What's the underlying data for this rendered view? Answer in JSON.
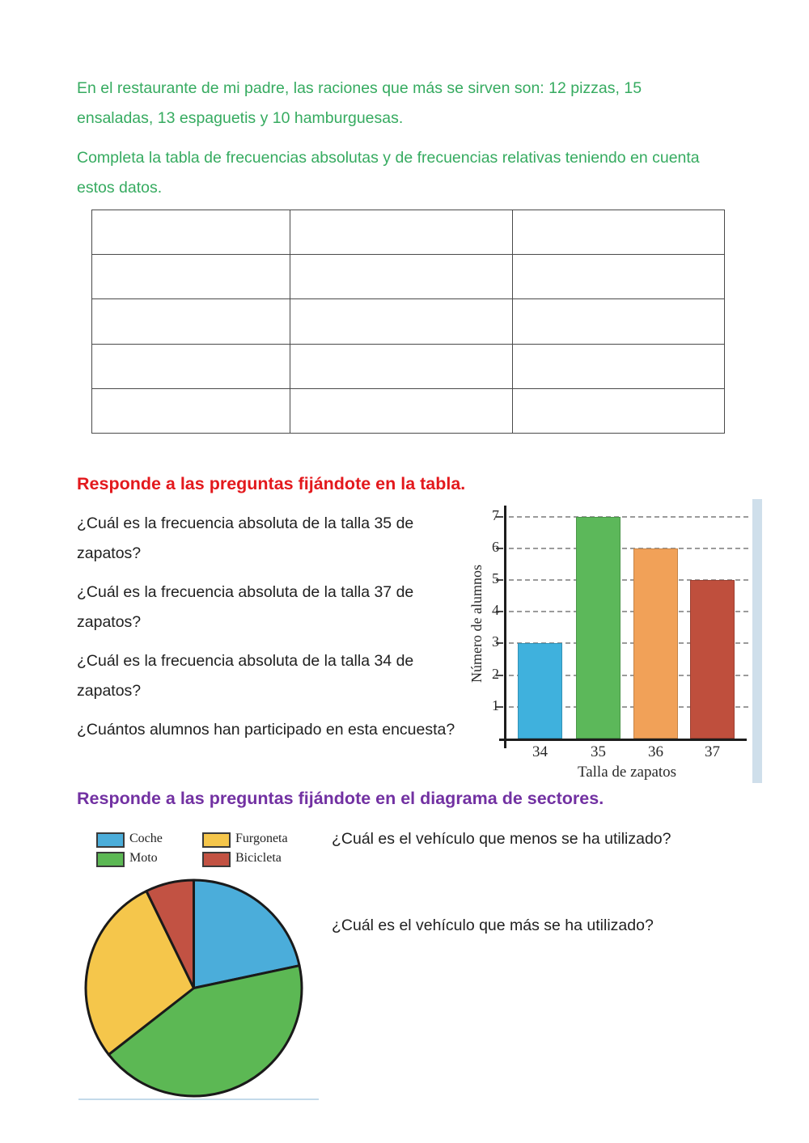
{
  "intro": {
    "paragraph1": "En el restaurante de mi padre, las raciones que más se sirven son: 12 pizzas, 15 ensaladas, 13 espaguetis y 10 hamburguesas.",
    "paragraph2": "Completa la tabla de frecuencias absolutas y de frecuencias relativas teniendo en cuenta estos datos."
  },
  "frequency_table": {
    "rows": 5,
    "columns": 3,
    "cells_empty": true
  },
  "sections": {
    "table_questions": {
      "heading": "Responde a las preguntas fijándote en la tabla.",
      "heading_color": "#e3191d",
      "items": [
        "¿Cuál es la frecuencia absoluta de la talla 35 de zapatos?",
        "¿Cuál es la frecuencia absoluta de la talla 37 de zapatos?",
        "¿Cuál es la frecuencia absoluta de la talla 34 de zapatos?",
        "¿Cuántos alumnos han participado en esta encuesta?"
      ]
    },
    "pie_section": {
      "heading": "Responde a las preguntas fijándote en el diagrama de sectores.",
      "heading_color": "#7231a2",
      "legend": [
        {
          "label": "Coche",
          "color": "#4badda"
        },
        {
          "label": "Furgoneta",
          "color": "#f5c64b"
        },
        {
          "label": "Moto",
          "color": "#5cb854"
        },
        {
          "label": "Bicicleta",
          "color": "#c25243"
        }
      ],
      "questions": [
        "¿Cuál es el vehículo que menos se ha utilizado?",
        "¿Cuál es el vehículo que más se ha utilizado?"
      ]
    }
  },
  "chart_data": [
    {
      "type": "bar",
      "title": "",
      "categories": [
        "34",
        "35",
        "36",
        "37"
      ],
      "values": [
        3,
        7,
        6,
        5
      ],
      "bar_colors": [
        "#3fb1dd",
        "#5cb85a",
        "#f1a158",
        "#bf4f3d"
      ],
      "xlabel": "Talla de zapatos",
      "ylabel": "Número de alumnos",
      "ylim": [
        0,
        7
      ],
      "yticks": [
        1,
        2,
        3,
        4,
        5,
        6,
        7
      ],
      "grid": "horizontal-dashed",
      "legend_position": "none"
    },
    {
      "type": "pie",
      "title": "",
      "start_angle_deg": 0,
      "direction": "clockwise",
      "slices": [
        {
          "label": "Coche",
          "angle_deg": 78,
          "pct": 22,
          "color": "#4badda"
        },
        {
          "label": "Moto",
          "angle_deg": 154,
          "pct": 43,
          "color": "#5cb854"
        },
        {
          "label": "Furgoneta",
          "angle_deg": 102,
          "pct": 28,
          "color": "#f5c64b"
        },
        {
          "label": "Bicicleta",
          "angle_deg": 26,
          "pct": 7,
          "color": "#c25243"
        }
      ],
      "outline_color": "#1a1a1a",
      "legend_position": "above-left"
    }
  ],
  "colors": {
    "intro_text": "#36ab60",
    "body_text": "#212121",
    "axis": "#1d1d1d",
    "gridline": "#9b9b9b",
    "chart_side_strip": "#cfdfeb",
    "table_border": "#4a4a4a",
    "divider": "#c4daea"
  }
}
